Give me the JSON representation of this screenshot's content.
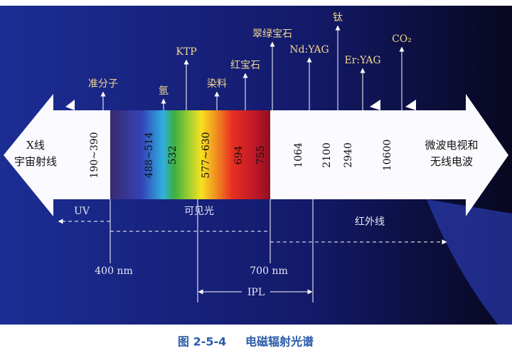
{
  "lasers": [
    "准分子",
    "氩",
    "KTP",
    "染料",
    "红宝石",
    "翠绿宝石",
    "Nd:YAG",
    "钛",
    "Er:YAG",
    "CO₂"
  ],
  "wavelengths": [
    "190~390",
    "488~514",
    "532",
    "577~630",
    "694",
    "755",
    "1064",
    "2100",
    "2940",
    "10600"
  ],
  "left_label": [
    "X线",
    "宇宙射线"
  ],
  "right_label": [
    "微波电视和",
    "无线电波"
  ],
  "ranges": {
    "uv": "UV",
    "visible": "可见光",
    "infrared": "红外线"
  },
  "markers": [
    "400 nm",
    "700 nm"
  ],
  "ipl": "IPL",
  "caption": {
    "number": "图 2-5-4",
    "title": "电磁辐射光谱"
  }
}
